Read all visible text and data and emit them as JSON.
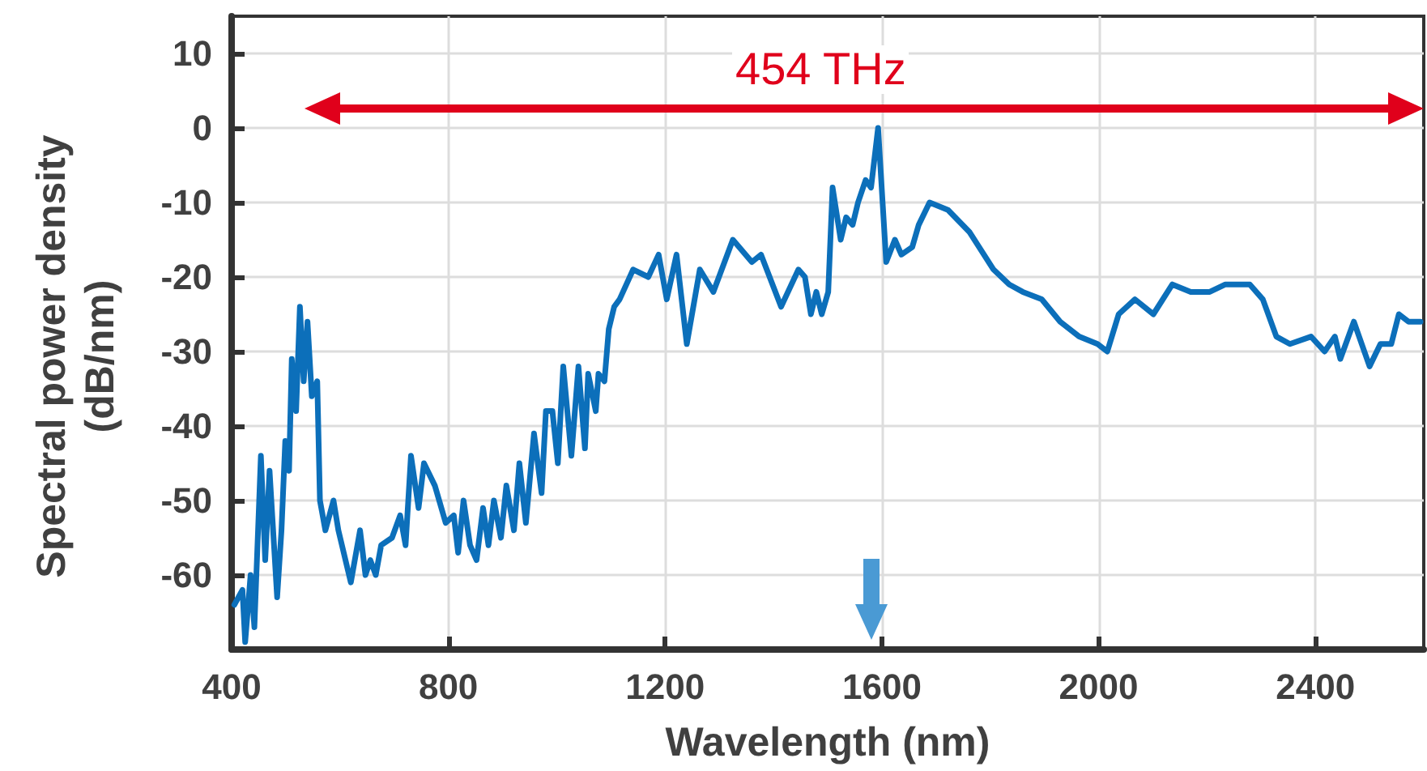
{
  "chart_data": {
    "type": "line",
    "xlabel": "Wavelength (nm)",
    "ylabel": "Spectral power density (dB/nm)",
    "x": [
      405,
      420,
      425,
      435,
      442,
      454,
      462,
      470,
      484,
      492,
      499,
      506,
      511,
      519,
      526,
      533,
      540,
      548,
      558,
      563,
      573,
      588,
      597,
      620,
      637,
      647,
      656,
      666,
      676,
      696,
      711,
      721,
      731,
      745,
      755,
      775,
      795,
      810,
      818,
      828,
      840,
      852,
      864,
      874,
      884,
      897,
      907,
      921,
      931,
      943,
      958,
      972,
      980,
      992,
      1002,
      1012,
      1027,
      1040,
      1052,
      1058,
      1072,
      1077,
      1088,
      1096,
      1106,
      1116,
      1141,
      1169,
      1188,
      1203,
      1221,
      1240,
      1264,
      1289,
      1325,
      1360,
      1377,
      1414,
      1446,
      1458,
      1469,
      1479,
      1489,
      1501,
      1509,
      1524,
      1534,
      1546,
      1556,
      1570,
      1580,
      1593,
      1608,
      1624,
      1636,
      1656,
      1668,
      1688,
      1722,
      1762,
      1806,
      1835,
      1860,
      1895,
      1929,
      1964,
      1998,
      2016,
      2037,
      2067,
      2101,
      2136,
      2170,
      2205,
      2234,
      2279,
      2303,
      2328,
      2353,
      2392,
      2417,
      2436,
      2446,
      2471,
      2500,
      2520,
      2540,
      2554,
      2572,
      2594
    ],
    "series": [
      {
        "color": "#0c6fba",
        "values": [
          -64,
          -62,
          -69,
          -60,
          -67,
          -44,
          -58,
          -46,
          -63,
          -54,
          -42,
          -46,
          -31,
          -38,
          -24,
          -34,
          -26,
          -36,
          -34,
          -50,
          -54,
          -50,
          -54,
          -61,
          -54,
          -60,
          -58,
          -60,
          -56,
          -55,
          -52,
          -56,
          -44,
          -51,
          -45,
          -48,
          -53,
          -52,
          -57,
          -50,
          -56,
          -58,
          -51,
          -56,
          -50,
          -55,
          -48,
          -54,
          -45,
          -53,
          -41,
          -49,
          -38,
          -38,
          -45,
          -32,
          -44,
          -32,
          -43,
          -33,
          -38,
          -33,
          -34,
          -27,
          -24,
          -23,
          -19,
          -20,
          -17,
          -23,
          -17,
          -29,
          -19,
          -22,
          -15,
          -18,
          -17,
          -24,
          -19,
          -20,
          -25,
          -22,
          -25,
          -22,
          -8,
          -15,
          -12,
          -13,
          -10,
          -7,
          -8,
          0,
          -18,
          -15,
          -17,
          -16,
          -13,
          -10,
          -11,
          -14,
          -19,
          -21,
          -22,
          -23,
          -26,
          -28,
          -29,
          -30,
          -25,
          -23,
          -25,
          -21,
          -22,
          -22,
          -21,
          -21,
          -23,
          -28,
          -29,
          -28,
          -30,
          -28,
          -31,
          -26,
          -32,
          -29,
          -29,
          -25,
          -26,
          -26
        ]
      }
    ],
    "xlim": [
      400,
      2600
    ],
    "xticks": [
      400,
      800,
      1200,
      1600,
      2000,
      2400
    ],
    "ylim": [
      -70,
      15
    ],
    "yticks": [
      -60,
      -50,
      -40,
      -30,
      -20,
      -10,
      0,
      10
    ],
    "grid": true,
    "marker": "none",
    "line_style": "solid",
    "annotations": [
      "454 THz"
    ]
  }
}
